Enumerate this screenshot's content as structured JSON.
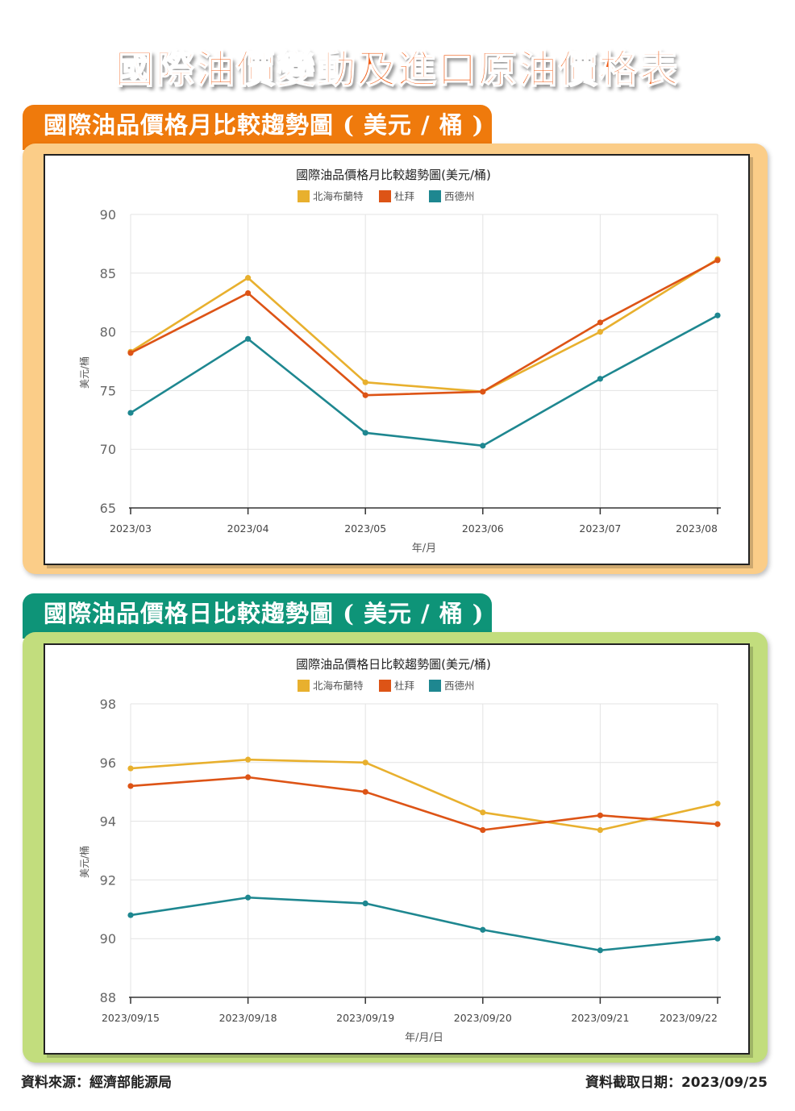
{
  "title": "國際油價變動及進口原油價格表",
  "sections": [
    {
      "header": "國際油品價格月比較趨勢圖 ( 美元 / 桶 )"
    },
    {
      "header": "國際油品價格日比較趨勢圖 ( 美元 / 桶 )"
    }
  ],
  "colors": {
    "brent": "#e8b02e",
    "dubai": "#dd5416",
    "wti": "#1e8790"
  },
  "chart_data": [
    {
      "type": "line",
      "title": "國際油品價格月比較趨勢圖(美元/桶)",
      "xlabel": "年/月",
      "ylabel": "美元/桶",
      "categories": [
        "2023/03",
        "2023/04",
        "2023/05",
        "2023/06",
        "2023/07",
        "2023/08"
      ],
      "ylim": [
        65,
        90
      ],
      "yticks": [
        "65",
        "70",
        "75",
        "80",
        "85",
        "90"
      ],
      "legend_position": "top-center",
      "grid": true,
      "series": [
        {
          "name": "北海布蘭特",
          "color": "#e8b02e",
          "values": [
            78.3,
            84.6,
            75.7,
            74.9,
            80.0,
            86.2
          ]
        },
        {
          "name": "杜拜",
          "color": "#dd5416",
          "values": [
            78.2,
            83.3,
            74.6,
            74.9,
            80.8,
            86.1
          ]
        },
        {
          "name": "西德州",
          "color": "#1e8790",
          "values": [
            73.1,
            79.4,
            71.4,
            70.3,
            76.0,
            81.4
          ]
        }
      ]
    },
    {
      "type": "line",
      "title": "國際油品價格日比較趨勢圖(美元/桶)",
      "xlabel": "年/月/日",
      "ylabel": "美元/桶",
      "categories": [
        "2023/09/15",
        "2023/09/18",
        "2023/09/19",
        "2023/09/20",
        "2023/09/21",
        "2023/09/22"
      ],
      "ylim": [
        88,
        98
      ],
      "yticks": [
        "88",
        "90",
        "92",
        "94",
        "96",
        "98"
      ],
      "legend_position": "top-center",
      "grid": true,
      "series": [
        {
          "name": "北海布蘭特",
          "color": "#e8b02e",
          "values": [
            95.8,
            96.1,
            96.0,
            94.3,
            93.7,
            94.6
          ]
        },
        {
          "name": "杜拜",
          "color": "#dd5416",
          "values": [
            95.2,
            95.5,
            95.0,
            93.7,
            94.2,
            93.9
          ]
        },
        {
          "name": "西德州",
          "color": "#1e8790",
          "values": [
            90.8,
            91.4,
            91.2,
            90.3,
            89.6,
            90.0
          ]
        }
      ]
    }
  ],
  "footer": {
    "source": "資料來源：經濟部能源局",
    "date": "資料截取日期：2023/09/25"
  }
}
